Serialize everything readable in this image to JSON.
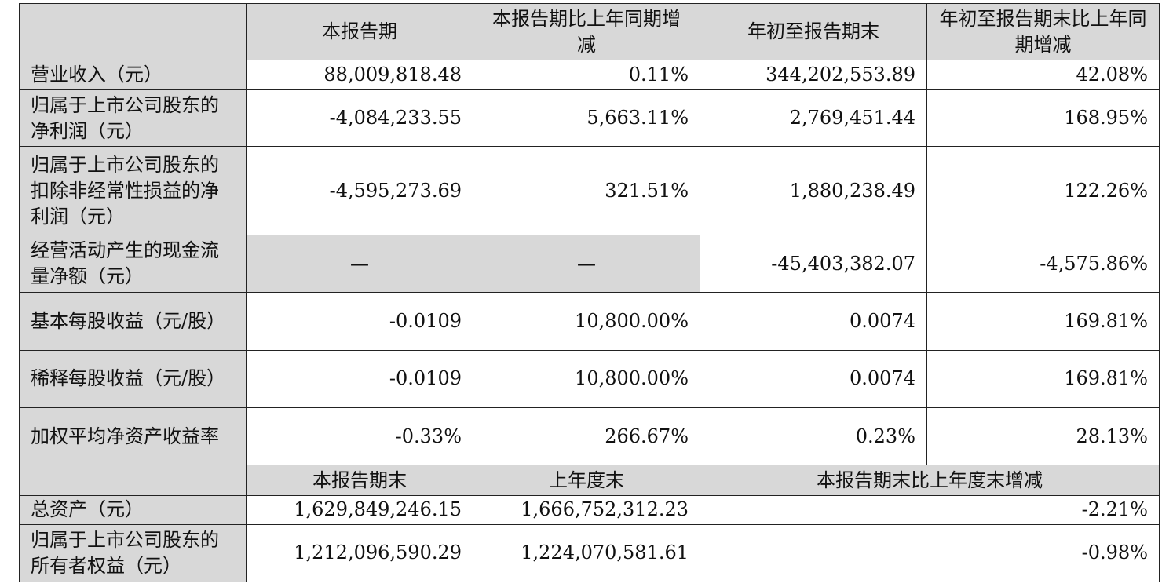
{
  "header": {
    "corner": "",
    "col1": "本报告期",
    "col2": "本报告期比上年同期增减",
    "col3": "年初至报告期末",
    "col4": "年初至报告期末比上年同期增减"
  },
  "rows": [
    {
      "label": "营业收入（元）",
      "v1": "88,009,818.48",
      "v2": "0.11%",
      "v3": "344,202,553.89",
      "v4": "42.08%"
    },
    {
      "label": "归属于上市公司股东的净利润（元）",
      "v1": "-4,084,233.55",
      "v2": "5,663.11%",
      "v3": "2,769,451.44",
      "v4": "168.95%"
    },
    {
      "label": "归属于上市公司股东的扣除非经常性损益的净利润（元）",
      "v1": "-4,595,273.69",
      "v2": "321.51%",
      "v3": "1,880,238.49",
      "v4": "122.26%"
    },
    {
      "label": "经营活动产生的现金流量净额（元）",
      "v1": "—",
      "v2": "—",
      "v3": "-45,403,382.07",
      "v4": "-4,575.86%"
    },
    {
      "label": "基本每股收益（元/股）",
      "v1": "-0.0109",
      "v2": "10,800.00%",
      "v3": "0.0074",
      "v4": "169.81%"
    },
    {
      "label": "稀释每股收益（元/股）",
      "v1": "-0.0109",
      "v2": "10,800.00%",
      "v3": "0.0074",
      "v4": "169.81%"
    },
    {
      "label": "加权平均净资产收益率",
      "v1": "-0.33%",
      "v2": "266.67%",
      "v3": "0.23%",
      "v4": "28.13%"
    }
  ],
  "header2": {
    "col1": "本报告期末",
    "col2": "上年度末",
    "col3": "本报告期末比上年度末增减"
  },
  "rows2": [
    {
      "label": "总资产（元）",
      "v1": "1,629,849,246.15",
      "v2": "1,666,752,312.23",
      "v3": "-2.21%"
    },
    {
      "label": "归属于上市公司股东的所有者权益（元）",
      "v1": "1,212,096,590.29",
      "v2": "1,224,070,581.61",
      "v3": "-0.98%"
    }
  ]
}
